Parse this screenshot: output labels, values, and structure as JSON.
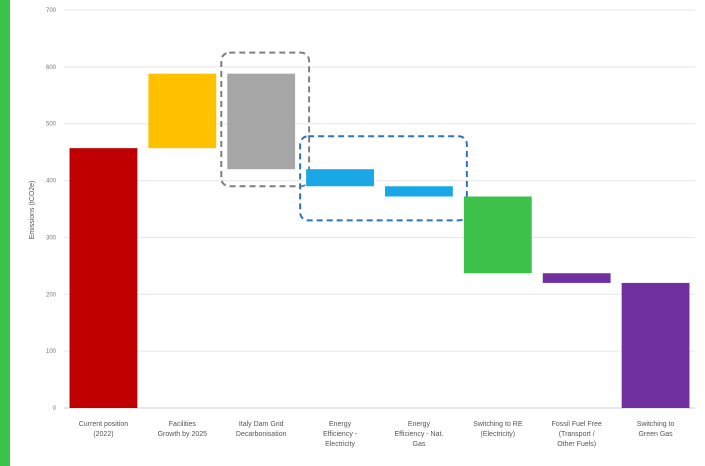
{
  "accent_color": "#3cc24a",
  "chart_data": {
    "type": "bar",
    "subtype": "waterfall",
    "ylabel": "Emissions (tCO2e)",
    "ylim": [
      0,
      700
    ],
    "yticks": [
      "0",
      "100",
      "200",
      "300",
      "400",
      "500",
      "600",
      "700"
    ],
    "grid": true,
    "categories": [
      [
        "Current position",
        "(2022)"
      ],
      [
        "Facilities",
        "Growth by 2025"
      ],
      [
        "Italy Dam Grid",
        "Decarbonisation"
      ],
      [
        "Energy",
        "Efficiency -",
        "Electricity"
      ],
      [
        "Energy",
        "Efficiency - Nat.",
        "Gas"
      ],
      [
        "Switching to RE",
        "(Electricity)"
      ],
      [
        "Fossil Fuel Free",
        "(Transport /",
        "Other Fuels)"
      ],
      [
        "Switching to",
        "Green Gas"
      ]
    ],
    "bars": [
      {
        "base": 0,
        "top": 457,
        "color": "#c00000"
      },
      {
        "base": 457,
        "top": 588,
        "color": "#ffc000"
      },
      {
        "base": 420,
        "top": 588,
        "color": "#a6a6a6"
      },
      {
        "base": 390,
        "top": 420,
        "color": "#1aa7e6"
      },
      {
        "base": 372,
        "top": 390,
        "color": "#1aa7e6"
      },
      {
        "base": 237,
        "top": 372,
        "color": "#3cc24a"
      },
      {
        "base": 220,
        "top": 237,
        "color": "#7030a0"
      },
      {
        "base": 0,
        "top": 220,
        "color": "#7030a0"
      }
    ],
    "highlight_groups": [
      {
        "from_category": 2,
        "to_category": 2,
        "from_value": 390,
        "to_value": 625,
        "color": "#7f7f7f"
      },
      {
        "from_category": 3,
        "to_category": 4,
        "from_value": 330,
        "to_value": 478,
        "color": "#2e75b6"
      }
    ]
  }
}
